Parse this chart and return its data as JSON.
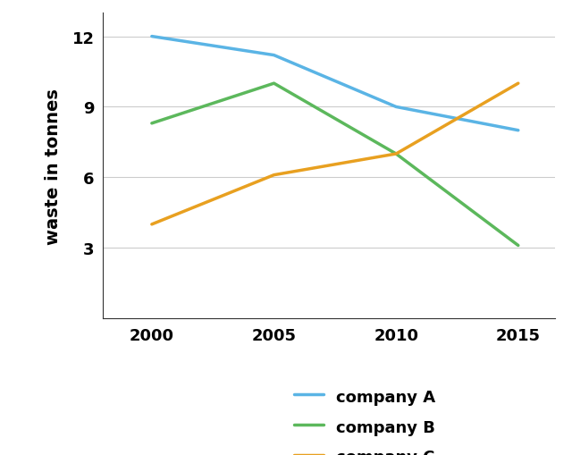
{
  "years": [
    2000,
    2005,
    2010,
    2015
  ],
  "company_A": [
    12,
    11.2,
    9.0,
    8.0
  ],
  "company_B": [
    8.3,
    10.0,
    7.0,
    3.1
  ],
  "company_C": [
    4.0,
    6.1,
    7.0,
    10.0
  ],
  "colors": {
    "company_A": "#5ab4e5",
    "company_B": "#5cb85c",
    "company_C": "#e8a020"
  },
  "ylabel": "waste in tonnes",
  "ylim": [
    0,
    13
  ],
  "yticks": [
    3,
    6,
    9,
    12
  ],
  "xticks": [
    2000,
    2005,
    2010,
    2015
  ],
  "legend_labels": [
    "company A",
    "company B",
    "company C"
  ],
  "line_width": 2.5,
  "background_color": "#ffffff",
  "grid_color": "#cccccc"
}
